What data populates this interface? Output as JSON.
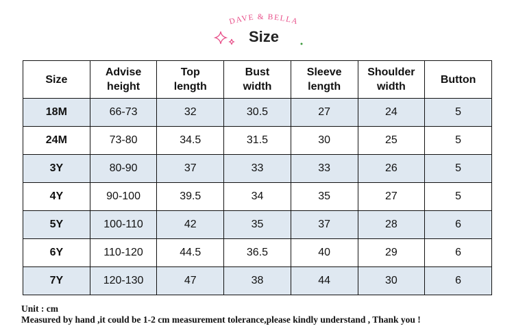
{
  "brand": "DAVE & BELLA",
  "title": "Size",
  "table": {
    "headers": [
      "Size",
      "Advise height",
      "Top length",
      "Bust width",
      "Sleeve length",
      "Shoulder width",
      "Button"
    ],
    "rows": [
      [
        "18M",
        "66-73",
        "32",
        "30.5",
        "27",
        "24",
        "5"
      ],
      [
        "24M",
        "73-80",
        "34.5",
        "31.5",
        "30",
        "25",
        "5"
      ],
      [
        "3Y",
        "80-90",
        "37",
        "33",
        "33",
        "26",
        "5"
      ],
      [
        "4Y",
        "90-100",
        "39.5",
        "34",
        "35",
        "27",
        "5"
      ],
      [
        "5Y",
        "100-110",
        "42",
        "35",
        "37",
        "28",
        "6"
      ],
      [
        "6Y",
        "110-120",
        "44.5",
        "36.5",
        "40",
        "29",
        "6"
      ],
      [
        "7Y",
        "120-130",
        "47",
        "38",
        "44",
        "30",
        "6"
      ]
    ]
  },
  "notes": [
    "Unit : cm",
    "Measured by hand ,it could be 1-2 cm measurement tolerance,please kindly understand , Thank you !"
  ]
}
